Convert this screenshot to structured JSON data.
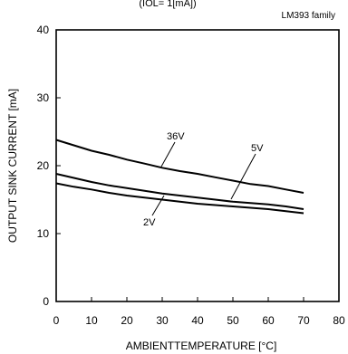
{
  "chart_data": {
    "type": "line",
    "title": "(IOL= 1[mA])",
    "subtitle": "LM393 family",
    "xlabel": "AMBIENTTEMPERATURE [°C]",
    "ylabel": "OUTPUT SINK CURRENT [mA]",
    "xlim": [
      0,
      80
    ],
    "ylim": [
      0,
      40
    ],
    "xticks": [
      "0",
      "10",
      "20",
      "30",
      "40",
      "50",
      "60",
      "70",
      "80"
    ],
    "yticks": [
      "0",
      "10",
      "20",
      "30",
      "40"
    ],
    "grid": false,
    "series": [
      {
        "name": "36V",
        "x": [
          0,
          5,
          10,
          15,
          20,
          25,
          30,
          35,
          40,
          45,
          50,
          55,
          60,
          65,
          70
        ],
        "y": [
          23.8,
          23.0,
          22.2,
          21.6,
          20.9,
          20.3,
          19.7,
          19.2,
          18.8,
          18.3,
          17.8,
          17.3,
          17.0,
          16.5,
          16.0
        ]
      },
      {
        "name": "5V",
        "x": [
          0,
          5,
          10,
          15,
          20,
          25,
          30,
          35,
          40,
          45,
          50,
          55,
          60,
          65,
          70
        ],
        "y": [
          18.8,
          18.2,
          17.6,
          17.1,
          16.7,
          16.3,
          15.9,
          15.6,
          15.3,
          15.0,
          14.7,
          14.5,
          14.3,
          14.0,
          13.6
        ]
      },
      {
        "name": "2V",
        "x": [
          0,
          5,
          10,
          15,
          20,
          25,
          30,
          35,
          40,
          45,
          50,
          55,
          60,
          65,
          70
        ],
        "y": [
          17.4,
          16.9,
          16.5,
          16.0,
          15.6,
          15.3,
          15.0,
          14.7,
          14.4,
          14.2,
          14.0,
          13.8,
          13.6,
          13.3,
          13.0
        ]
      }
    ]
  }
}
